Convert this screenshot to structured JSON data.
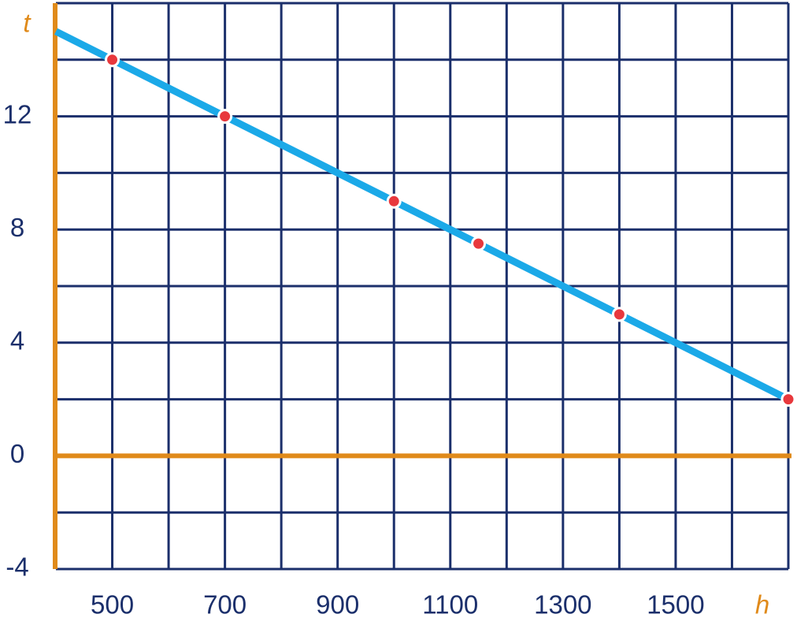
{
  "chart_data": {
    "type": "line",
    "x_label": "h",
    "y_label": "t",
    "xlim": [
      400,
      1700
    ],
    "ylim": [
      -4,
      16
    ],
    "xticks": [
      500,
      700,
      900,
      1100,
      1300,
      1500
    ],
    "yticks": [
      -4,
      0,
      4,
      8,
      12
    ],
    "xgrid": [
      500,
      600,
      700,
      800,
      900,
      1000,
      1100,
      1200,
      1300,
      1400,
      1500,
      1600,
      1700
    ],
    "ygrid": [
      -2,
      0,
      2,
      4,
      6,
      8,
      10,
      12,
      14,
      16
    ],
    "grid_color": "#1b2f6b",
    "axis_color": "#e08a1a",
    "series": [
      {
        "color": "#1ba9e8",
        "x": [
          400,
          1700
        ],
        "values": [
          15,
          2
        ]
      },
      {
        "color": "#e8383d",
        "x": [
          500,
          700,
          1000,
          1150,
          1400,
          1700
        ],
        "values": [
          14,
          12,
          9,
          7.5,
          5,
          2
        ]
      }
    ]
  }
}
